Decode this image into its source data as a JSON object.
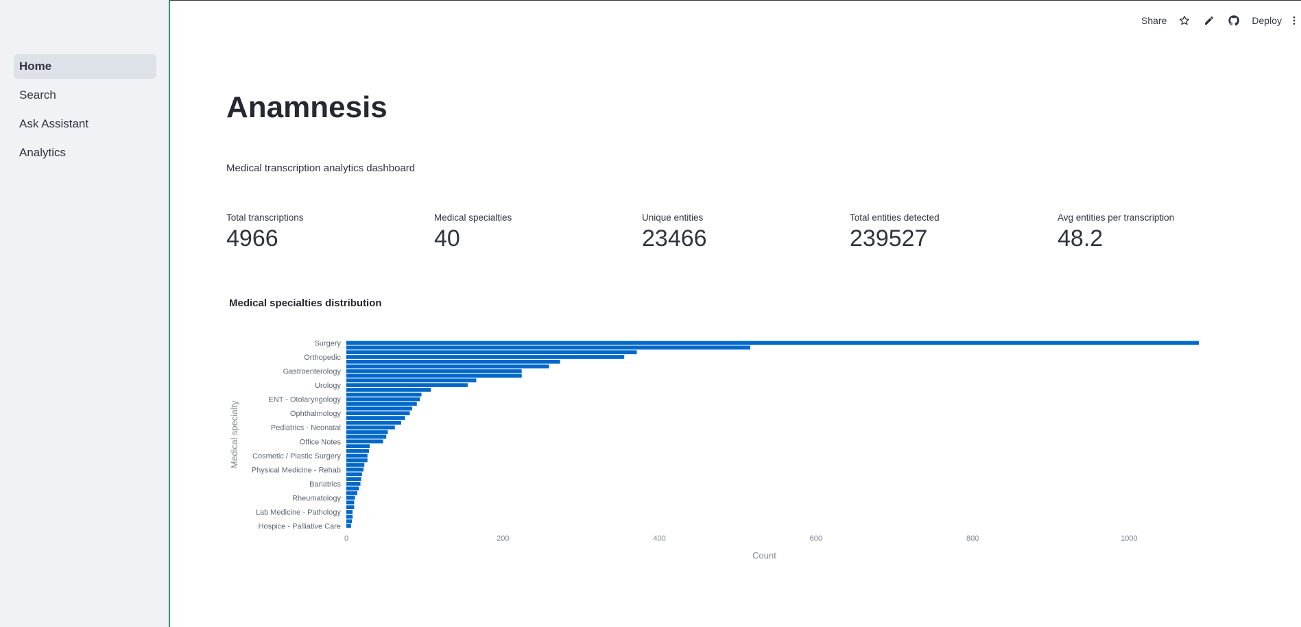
{
  "sidebar": {
    "items": [
      {
        "label": "Home",
        "active": true
      },
      {
        "label": "Search",
        "active": false
      },
      {
        "label": "Ask Assistant",
        "active": false
      },
      {
        "label": "Analytics",
        "active": false
      }
    ]
  },
  "toolbar": {
    "share_label": "Share",
    "deploy_label": "Deploy",
    "icons": [
      "star-icon",
      "pencil-icon",
      "github-icon",
      "more-vertical-icon"
    ]
  },
  "main": {
    "title": "Anamnesis",
    "subtitle": "Medical transcription analytics dashboard"
  },
  "metrics": [
    {
      "label": "Total transcriptions",
      "value": "4966"
    },
    {
      "label": "Medical specialties",
      "value": "40"
    },
    {
      "label": "Unique entities",
      "value": "23466"
    },
    {
      "label": "Total entities detected",
      "value": "239527"
    },
    {
      "label": "Avg entities per transcription",
      "value": "48.2"
    }
  ],
  "chart_data": {
    "type": "bar",
    "orientation": "horizontal",
    "title": "Medical specialties distribution",
    "xlabel": "Count",
    "ylabel": "Medical specialty",
    "xlim": [
      0,
      1103
    ],
    "xticks": [
      0,
      200,
      400,
      600,
      800,
      1000
    ],
    "color": "#0068c9",
    "grid": false,
    "categories": [
      "Surgery",
      "",
      "",
      "Orthopedic",
      "",
      "",
      "Gastroenterology",
      "",
      "",
      "Urology",
      "",
      "",
      "ENT - Otolaryngology",
      "",
      "",
      "Ophthalmology",
      "",
      "",
      "Pediatrics - Neonatal",
      "",
      "",
      "Office Notes",
      "",
      "",
      "Cosmetic / Plastic Surgery",
      "",
      "",
      "Physical Medicine - Rehab",
      "",
      "",
      "Bariatrics",
      "",
      "",
      "Rheumatology",
      "",
      "",
      "Lab Medicine - Pathology",
      "",
      "",
      "Hospice - Palliative Care"
    ],
    "values": [
      1089,
      516,
      371,
      355,
      273,
      259,
      224,
      224,
      166,
      155,
      108,
      96,
      94,
      90,
      84,
      81,
      75,
      70,
      62,
      53,
      51,
      47,
      30,
      29,
      27,
      27,
      23,
      22,
      20,
      19,
      18,
      16,
      14,
      11,
      10,
      10,
      8,
      8,
      7,
      6
    ]
  }
}
